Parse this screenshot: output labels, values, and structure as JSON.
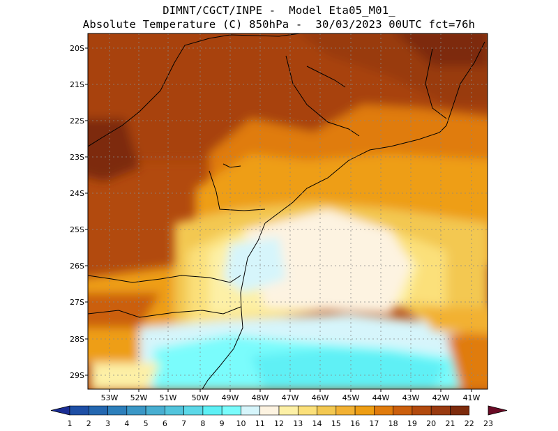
{
  "header": {
    "line1": "DIMNT/CGCT/INPE -  Model Eta05_M01_",
    "line2": "Absolute Temperature (C) 850hPa -  30/03/2023 00UTC fct=76h"
  },
  "map": {
    "lat_labels": [
      "20S",
      "21S",
      "22S",
      "23S",
      "24S",
      "25S",
      "26S",
      "27S",
      "28S",
      "29S"
    ],
    "lon_labels": [
      "53W",
      "52W",
      "51W",
      "50W",
      "49W",
      "48W",
      "47W",
      "46W",
      "45W",
      "44W",
      "43W",
      "42W",
      "41W"
    ],
    "lat_range": [
      -29.45,
      -19.7
    ],
    "lon_range": [
      -53.6,
      -40.5
    ],
    "grid": true,
    "coastline_color": "#000000"
  },
  "colorbar": {
    "labels": [
      "1",
      "2",
      "3",
      "4",
      "5",
      "6",
      "7",
      "8",
      "9",
      "10",
      "11",
      "12",
      "13",
      "14",
      "15",
      "16",
      "17",
      "18",
      "19",
      "20",
      "21",
      "22",
      "23"
    ],
    "colors": [
      "#1a2d94",
      "#1e4fa5",
      "#2467b0",
      "#2d7fbb",
      "#3b97c6",
      "#48aed1",
      "#52c4dc",
      "#5cd8e8",
      "#5ef0f5",
      "#7afcfc",
      "#d6f5fb",
      "#fdf3e1",
      "#fdf0a6",
      "#fbe07a",
      "#f3c851",
      "#f2b133",
      "#ee9e14",
      "#e07b0d",
      "#cb5f0d",
      "#b24a0e",
      "#993a10",
      "#7d2b0c",
      "#6a0a25"
    ]
  }
}
